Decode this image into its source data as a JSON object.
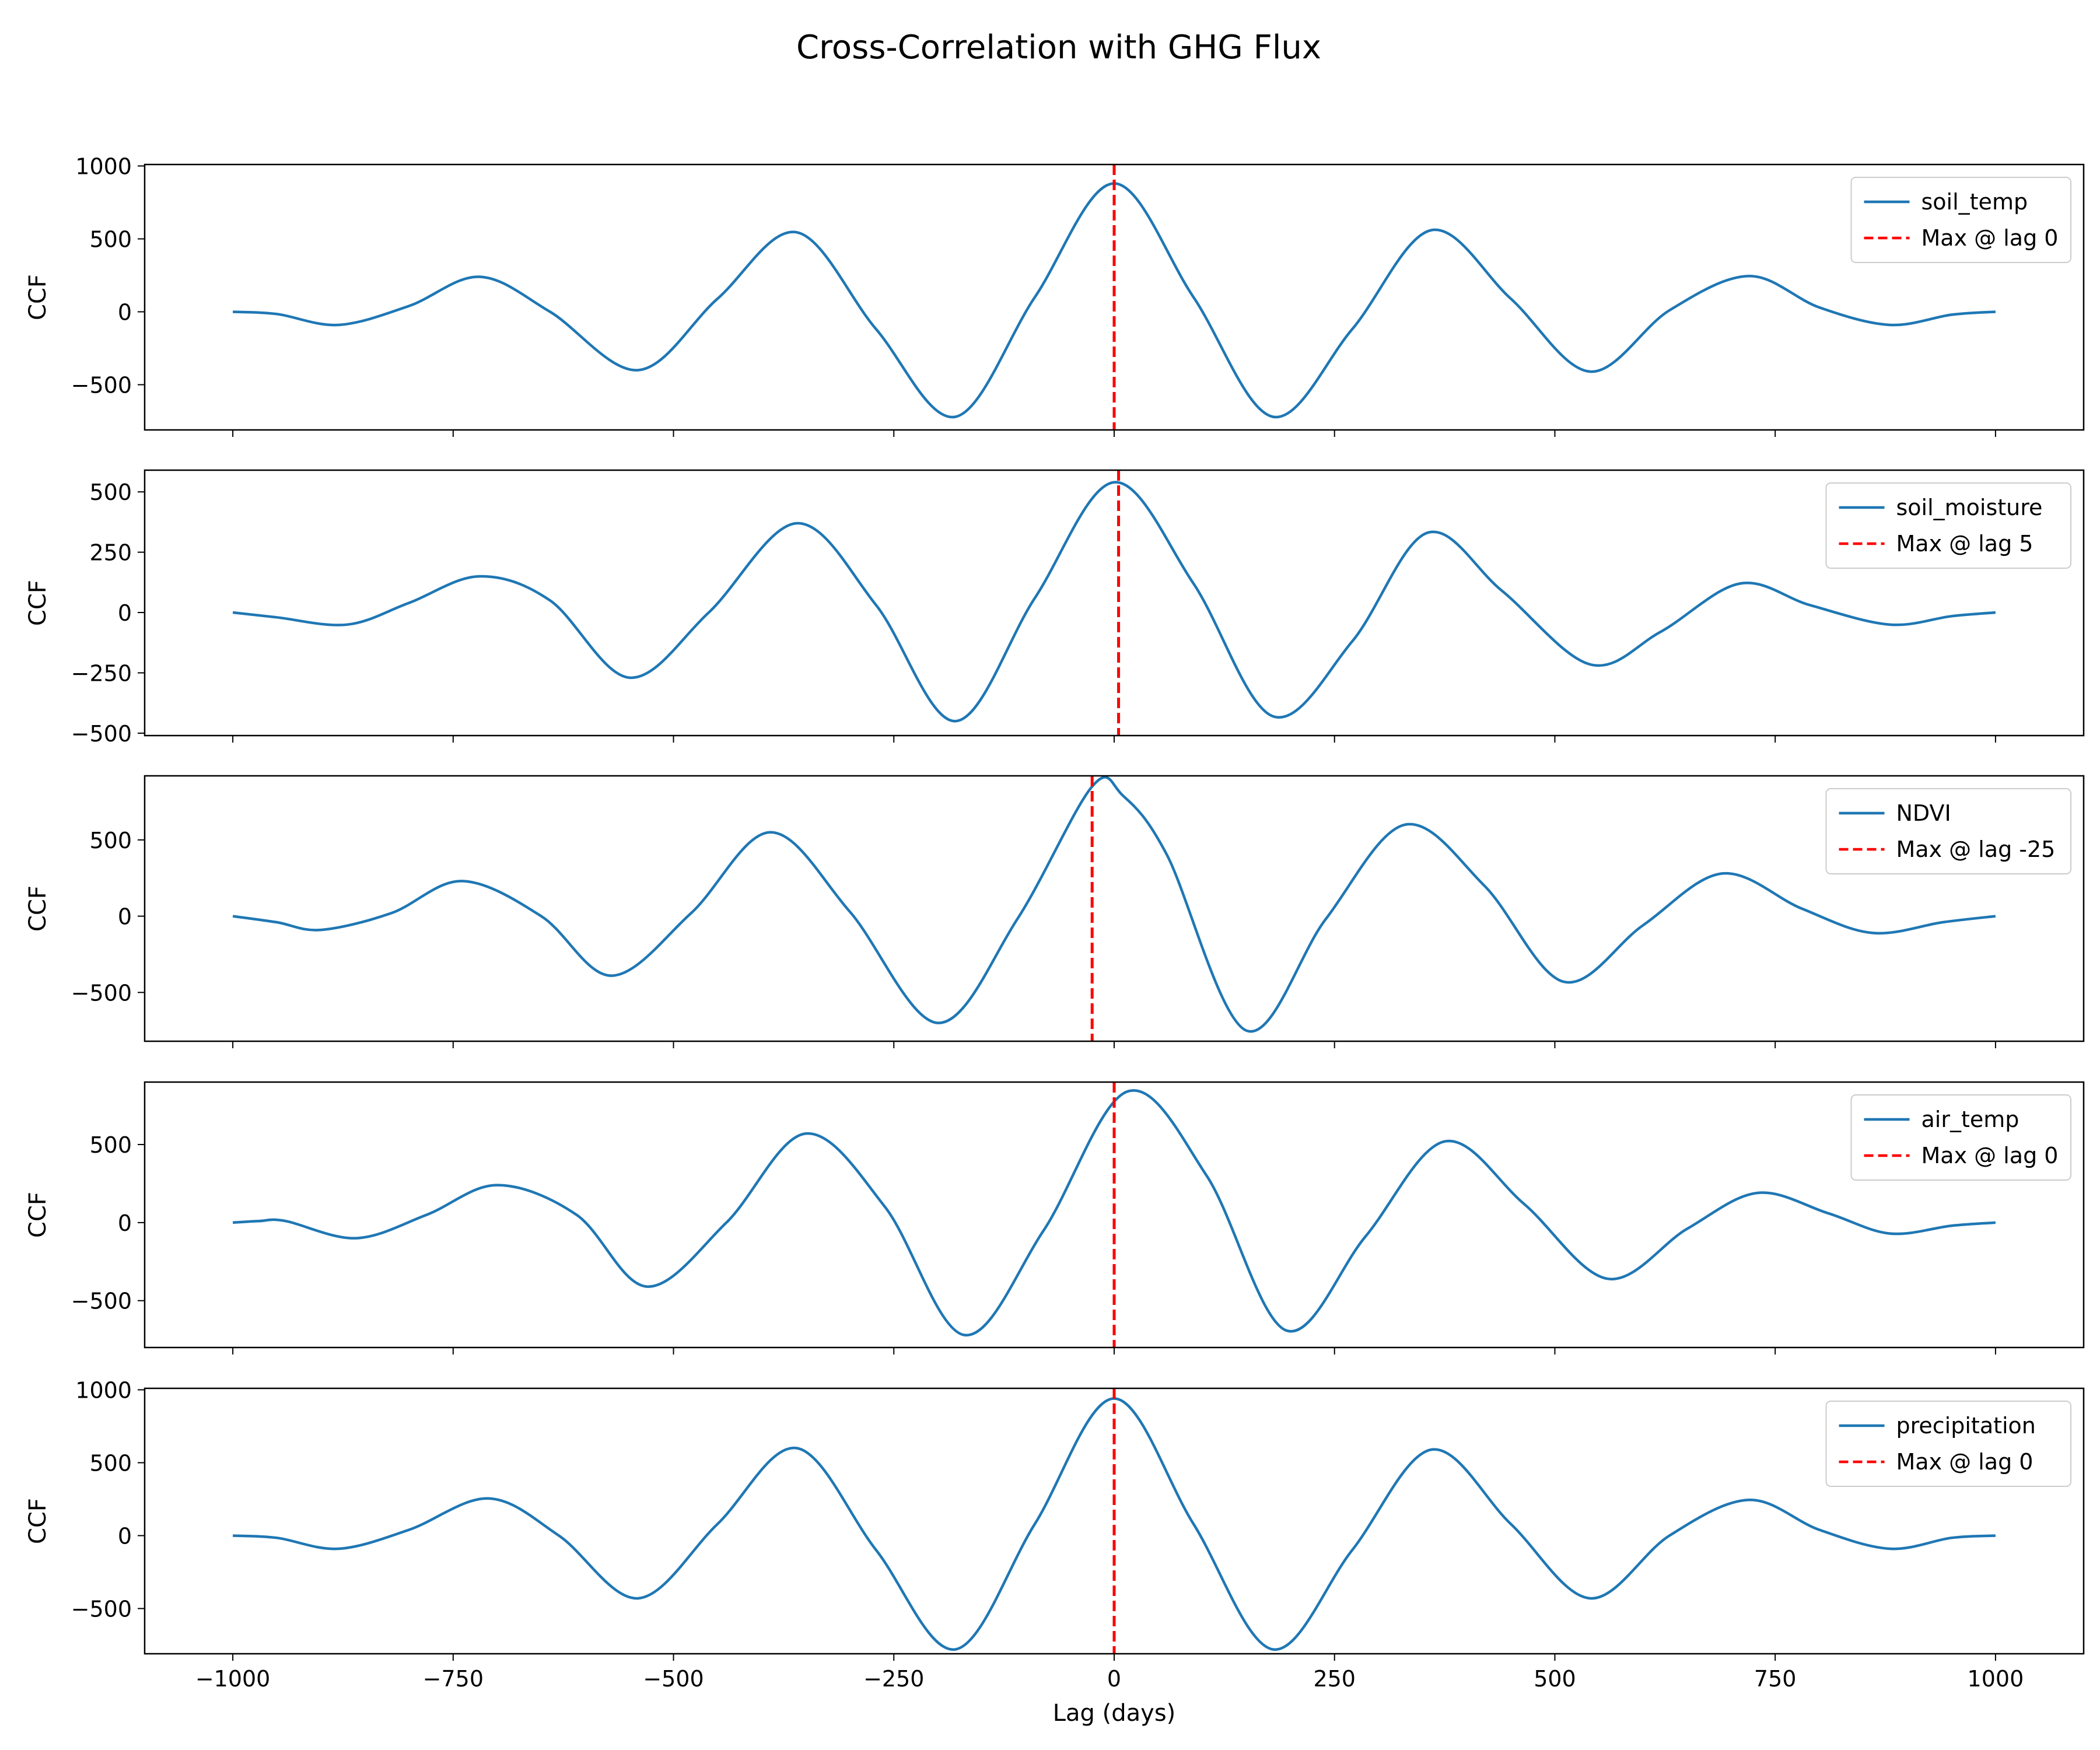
{
  "figure": {
    "title": "Cross-Correlation with GHG Flux",
    "xlabel": "Lag (days)"
  },
  "colors": {
    "series": "#1f77b4",
    "max_marker": "#ff0000",
    "axes": "#000000"
  },
  "chart_data": [
    {
      "type": "line",
      "ylabel": "CCF",
      "xlim": [
        -1100,
        1100
      ],
      "ylim": [
        -810,
        1010
      ],
      "yticks": [
        -500,
        0,
        500,
        1000
      ],
      "xticks": [
        -1000,
        -750,
        -500,
        -250,
        0,
        250,
        500,
        750,
        1000
      ],
      "legend_position": "top-right",
      "series": [
        {
          "name": "soil_temp",
          "x": [
            -1000,
            -950,
            -880,
            -800,
            -720,
            -640,
            -540,
            -450,
            -360,
            -270,
            -180,
            -90,
            0,
            90,
            180,
            270,
            360,
            450,
            540,
            630,
            720,
            800,
            880,
            950,
            1000
          ],
          "y": [
            0,
            -15,
            -90,
            40,
            240,
            0,
            -400,
            90,
            545,
            -120,
            -720,
            100,
            880,
            100,
            -720,
            -120,
            560,
            90,
            -410,
            10,
            245,
            30,
            -90,
            -20,
            0
          ]
        }
      ],
      "max_marker": {
        "lag": 0,
        "label": "Max @ lag 0"
      }
    },
    {
      "type": "line",
      "ylabel": "CCF",
      "xlim": [
        -1100,
        1100
      ],
      "ylim": [
        -510,
        590
      ],
      "yticks": [
        -500,
        -250,
        0,
        250,
        500
      ],
      "xticks": [
        -1000,
        -750,
        -500,
        -250,
        0,
        250,
        500,
        750,
        1000
      ],
      "legend_position": "top-right",
      "series": [
        {
          "name": "soil_moisture",
          "x": [
            -1000,
            -950,
            -870,
            -800,
            -720,
            -640,
            -550,
            -460,
            -360,
            -270,
            -180,
            -90,
            0,
            90,
            180,
            270,
            355,
            440,
            540,
            620,
            710,
            790,
            880,
            950,
            1000
          ],
          "y": [
            0,
            -20,
            -50,
            40,
            150,
            50,
            -270,
            0,
            370,
            30,
            -450,
            60,
            540,
            120,
            -430,
            -120,
            330,
            90,
            -215,
            -80,
            120,
            30,
            -50,
            -15,
            0
          ]
        }
      ],
      "max_marker": {
        "lag": 5,
        "label": "Max @ lag 5"
      }
    },
    {
      "type": "line",
      "ylabel": "CCF",
      "xlim": [
        -1100,
        1100
      ],
      "ylim": [
        -820,
        920
      ],
      "yticks": [
        -500,
        0,
        500
      ],
      "xticks": [
        -1000,
        -750,
        -500,
        -250,
        0,
        250,
        500,
        750,
        1000
      ],
      "legend_position": "top-right",
      "series": [
        {
          "name": "NDVI",
          "x": [
            -1000,
            -950,
            -900,
            -820,
            -740,
            -650,
            -570,
            -480,
            -390,
            -300,
            -200,
            -110,
            -25,
            10,
            60,
            150,
            240,
            330,
            420,
            510,
            600,
            690,
            780,
            860,
            940,
            1000
          ],
          "y": [
            0,
            -40,
            -90,
            20,
            230,
            0,
            -390,
            20,
            550,
            30,
            -700,
            -20,
            850,
            790,
            400,
            -750,
            -20,
            600,
            200,
            -430,
            -60,
            280,
            50,
            -110,
            -40,
            0
          ]
        }
      ],
      "max_marker": {
        "lag": -25,
        "label": "Max @ lag -25"
      }
    },
    {
      "type": "line",
      "ylabel": "CCF",
      "xlim": [
        -1100,
        1100
      ],
      "ylim": [
        -800,
        900
      ],
      "yticks": [
        -500,
        0,
        500
      ],
      "xticks": [
        -1000,
        -750,
        -500,
        -250,
        0,
        250,
        500,
        750,
        1000
      ],
      "legend_position": "top-right",
      "series": [
        {
          "name": "air_temp",
          "x": [
            -1000,
            -970,
            -940,
            -860,
            -780,
            -700,
            -610,
            -530,
            -440,
            -350,
            -260,
            -170,
            -80,
            15,
            105,
            195,
            285,
            375,
            465,
            560,
            650,
            730,
            810,
            880,
            950,
            1000
          ],
          "y": [
            0,
            10,
            10,
            -100,
            50,
            240,
            50,
            -410,
            0,
            570,
            100,
            -720,
            -50,
            840,
            300,
            -690,
            -90,
            520,
            120,
            -360,
            -40,
            190,
            60,
            -70,
            -20,
            0
          ]
        }
      ],
      "max_marker": {
        "lag": 0,
        "label": "Max @ lag 0"
      }
    },
    {
      "type": "line",
      "ylabel": "CCF",
      "xlim": [
        -1100,
        1100
      ],
      "ylim": [
        -810,
        1010
      ],
      "yticks": [
        -500,
        0,
        500,
        1000
      ],
      "xticks": [
        -1000,
        -750,
        -500,
        -250,
        0,
        250,
        500,
        750,
        1000
      ],
      "legend_position": "top-right",
      "series": [
        {
          "name": "precipitation",
          "x": [
            -1000,
            -950,
            -880,
            -800,
            -710,
            -630,
            -540,
            -450,
            -360,
            -270,
            -180,
            -90,
            0,
            90,
            180,
            270,
            360,
            450,
            540,
            630,
            720,
            800,
            880,
            950,
            1000
          ],
          "y": [
            0,
            -15,
            -90,
            40,
            255,
            0,
            -430,
            80,
            600,
            -100,
            -780,
            80,
            940,
            80,
            -780,
            -100,
            590,
            80,
            -430,
            0,
            245,
            40,
            -90,
            -15,
            0
          ]
        }
      ],
      "max_marker": {
        "lag": 0,
        "label": "Max @ lag 0"
      }
    }
  ]
}
